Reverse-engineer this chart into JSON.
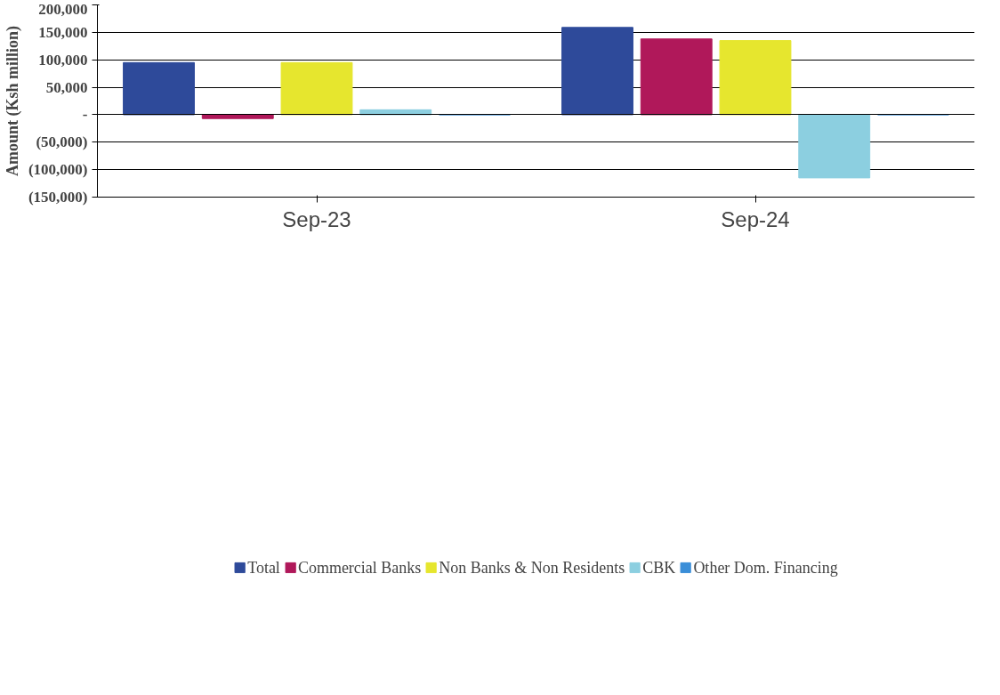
{
  "chart_data": {
    "type": "bar",
    "ylabel": "Amount (Ksh million)",
    "categories": [
      "Sep-23",
      "Sep-24"
    ],
    "series": [
      {
        "name": "Total",
        "color": "#2e4a9a",
        "values": [
          95000,
          159000
        ]
      },
      {
        "name": "Commercial Banks",
        "color": "#b0185a",
        "values": [
          -7000,
          138000
        ]
      },
      {
        "name": "Non Banks & Non Residents",
        "color": "#e6e62e",
        "values": [
          95000,
          135000
        ]
      },
      {
        "name": "CBK",
        "color": "#8ccfe0",
        "values": [
          9000,
          -115000
        ]
      },
      {
        "name": "Other Dom. Financing",
        "color": "#3a8ed8",
        "values": [
          0,
          0
        ]
      }
    ],
    "ylim": [
      -150000,
      200000
    ],
    "yticks": [
      {
        "value": -150000,
        "label": "(150,000)"
      },
      {
        "value": -100000,
        "label": "(100,000)"
      },
      {
        "value": -50000,
        "label": "(50,000)"
      },
      {
        "value": 0,
        "label": "-"
      },
      {
        "value": 50000,
        "label": "50,000"
      },
      {
        "value": 100000,
        "label": "100,000"
      },
      {
        "value": 150000,
        "label": "150,000"
      },
      {
        "value": 200000,
        "label": "200,000"
      }
    ],
    "grid": "y",
    "legend": "bottom"
  }
}
